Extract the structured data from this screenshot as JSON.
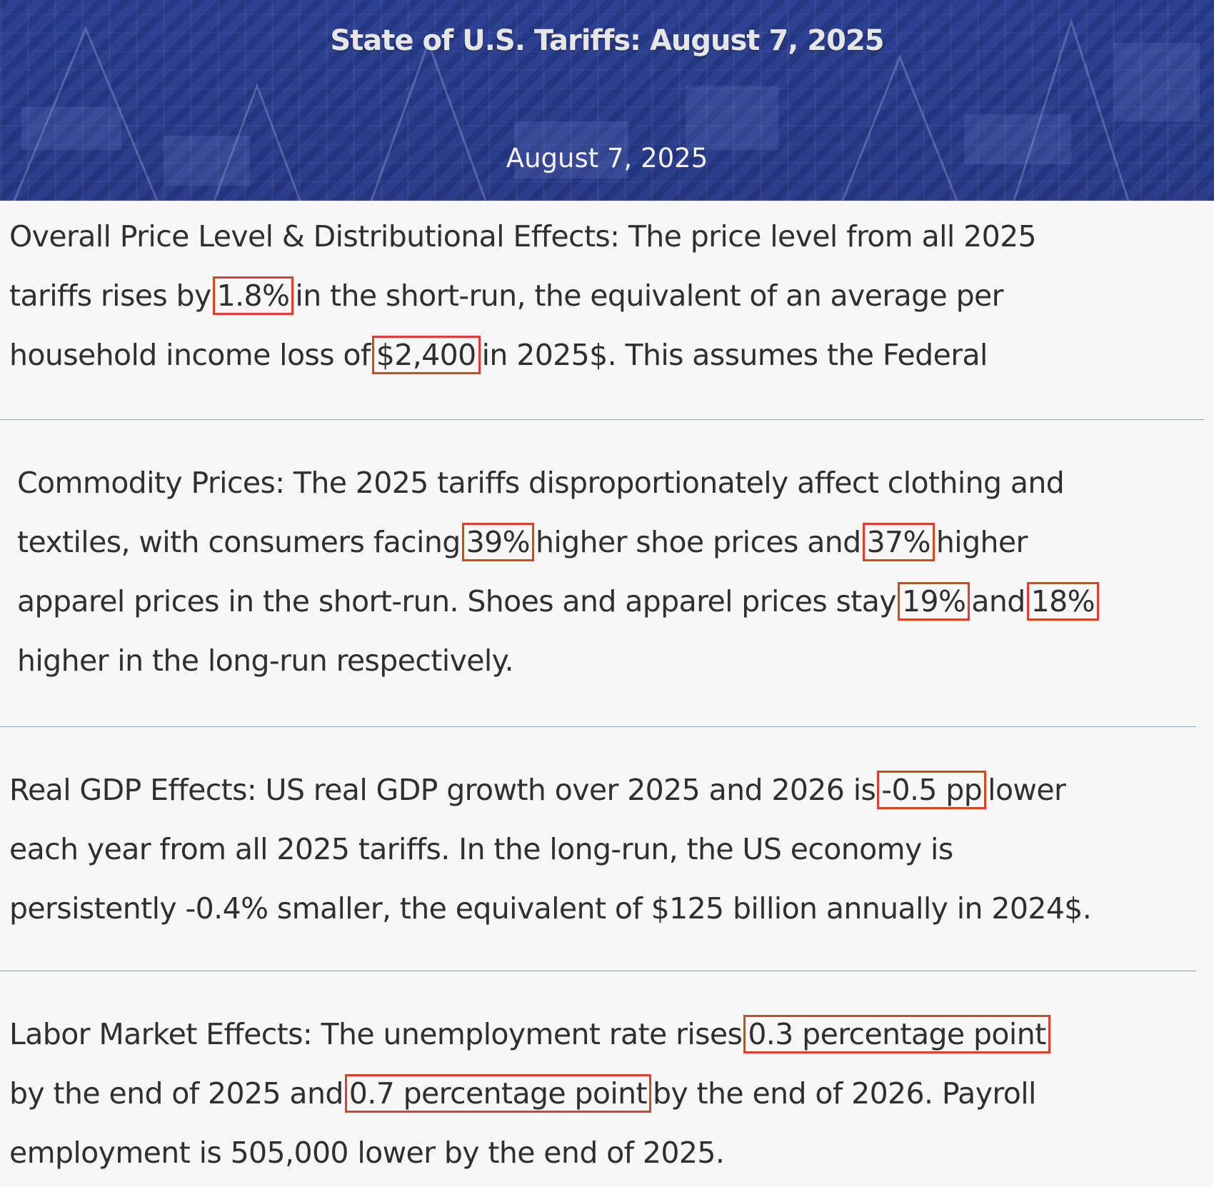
{
  "header": {
    "title": "State of U.S. Tariffs: August 7, 2025",
    "date": "August 7, 2025"
  },
  "sections": {
    "price": {
      "line1": "Overall Price Level & Distributional Effects: The price level from all 2025",
      "line2_before": "tariffs rises by",
      "line2_highlight": "1.8%",
      "line2_after": "in the short-run, the equivalent of an average per",
      "line3_before": "household income loss of",
      "line3_highlight": "$2,400",
      "line3_after": "in 2025$. This assumes the Federal"
    },
    "commodity": {
      "line1": "Commodity Prices: The 2025 tariffs disproportionately affect clothing and",
      "line2_before": "textiles, with consumers facing",
      "line2_highlight1": "39%",
      "line2_mid": "higher shoe prices and",
      "line2_highlight2": "37%",
      "line2_after": "higher",
      "line3_before": "apparel prices in the short-run. Shoes and apparel prices stay",
      "line3_highlight1": "19%",
      "line3_mid": "and",
      "line3_highlight2": "18%",
      "line4": "higher in the long-run respectively."
    },
    "gdp": {
      "line1_before": "Real GDP Effects: US real GDP growth over 2025 and 2026 is",
      "line1_highlight": "-0.5 pp",
      "line1_after": "lower",
      "line2": "each year from all 2025 tariffs. In the long-run, the US economy is",
      "line3": "persistently -0.4% smaller, the equivalent of $125 billion annually in 2024$."
    },
    "labor": {
      "line1_before": "Labor Market Effects: The unemployment rate rises",
      "line1_highlight": "0.3 percentage point",
      "line2_before": "by the end of 2025 and",
      "line2_highlight": "0.7 percentage point",
      "line2_after": "by the end of 2026. Payroll",
      "line3": "employment is 505,000 lower by the end of 2025."
    }
  },
  "colors": {
    "header_bg": "#2b3f8f",
    "highlight_box": "#d8412a",
    "divider": "#7fa3cc",
    "page_bg": "#f7f7f7"
  }
}
